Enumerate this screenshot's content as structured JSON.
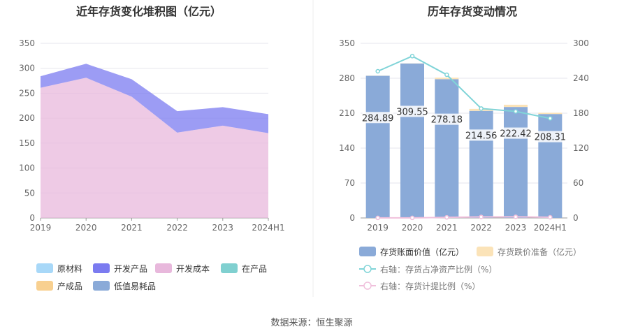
{
  "left_chart": {
    "title": "近年存货变化堆积图（亿元）"
  },
  "right_chart": {
    "title": "历年存货变动情况"
  },
  "source": "数据来源：恒生聚源",
  "chart_data": [
    {
      "type": "area",
      "title": "近年存货变化堆积图（亿元）",
      "categories": [
        "2019",
        "2020",
        "2021",
        "2022",
        "2023",
        "2024H1"
      ],
      "ylim": [
        0,
        350
      ],
      "yticks": [
        0,
        50,
        100,
        150,
        200,
        250,
        300,
        350
      ],
      "stacked": true,
      "series": [
        {
          "name": "原材料",
          "color": "#a8d8f8",
          "values": [
            0,
            0,
            0,
            0,
            0,
            0
          ]
        },
        {
          "name": "开发产品",
          "color": "#7b7bf0",
          "values": [
            23,
            28,
            35,
            43,
            37,
            38
          ]
        },
        {
          "name": "开发成本",
          "color": "#e8b8dc",
          "values": [
            261,
            281,
            243,
            171,
            185,
            170
          ]
        },
        {
          "name": "在产品",
          "color": "#80d0d0",
          "values": [
            0,
            0,
            0,
            0,
            0,
            0
          ]
        },
        {
          "name": "产成品",
          "color": "#f8d090",
          "values": [
            0,
            0,
            0,
            0,
            0,
            0
          ]
        },
        {
          "name": "低值易耗品",
          "color": "#8aaad8",
          "values": [
            0,
            0,
            0,
            0,
            0,
            0
          ]
        }
      ],
      "legend_position": "bottom"
    },
    {
      "type": "bar",
      "title": "历年存货变动情况",
      "categories": [
        "2019",
        "2020",
        "2021",
        "2022",
        "2023",
        "2024H1"
      ],
      "ylim": [
        0,
        350
      ],
      "yticks": [
        0,
        70,
        140,
        210,
        280,
        350
      ],
      "y2lim": [
        0,
        300
      ],
      "y2ticks": [
        0,
        60,
        120,
        180,
        240,
        300
      ],
      "series": [
        {
          "name": "存货账面价值（亿元）",
          "kind": "bar",
          "color": "#8aaad8",
          "values": [
            284.89,
            309.55,
            278.18,
            214.56,
            222.42,
            208.31
          ],
          "labels": [
            "284.89",
            "309.55",
            "278.18",
            "214.56",
            "222.42",
            "208.31"
          ]
        },
        {
          "name": "存货跌价准备（亿元）",
          "kind": "bar-stack",
          "color": "#fbe3b8",
          "values": [
            0.3,
            0.3,
            3.0,
            4.0,
            4.5,
            2.5
          ]
        },
        {
          "name": "右轴：存货占净资产比例（%）",
          "kind": "line",
          "axis": "right",
          "color": "#80d4d8",
          "values": [
            252,
            278,
            246,
            188,
            183,
            171
          ]
        },
        {
          "name": "右轴：存货计提比例（%）",
          "kind": "line",
          "axis": "right",
          "color": "#f0c0dc",
          "values": [
            0.1,
            0.1,
            1.0,
            1.8,
            2.0,
            1.2
          ]
        }
      ],
      "legend_position": "bottom"
    }
  ]
}
